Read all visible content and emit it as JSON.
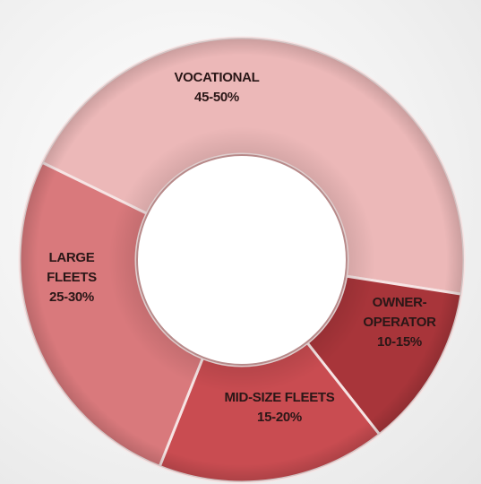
{
  "chart_data": {
    "type": "donut",
    "categories": [
      "VOCATIONAL",
      "OWNER-\nOPERATOR",
      "MID-SIZE FLEETS",
      "LARGE\nFLEETS"
    ],
    "values": [
      47.5,
      12.5,
      17.5,
      27.5
    ],
    "value_labels": [
      "45-50%",
      "10-15%",
      "15-20%",
      "25-30%"
    ],
    "colors": [
      "#ecb8b8",
      "#a8353a",
      "#c94c51",
      "#d9797c"
    ]
  }
}
